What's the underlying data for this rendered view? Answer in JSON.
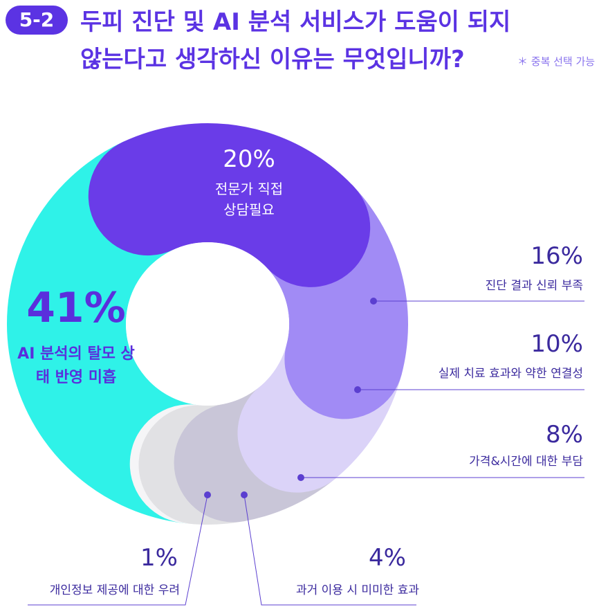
{
  "badge": "5-2",
  "title": [
    "두피 진단 및 AI 분석 서비스가 도움이 되지",
    "않는다고 생각하신 이유는 무엇입니까?"
  ],
  "note": "＊ 중복 선택 가능",
  "chart_data": {
    "type": "donut",
    "categories": [
      "AI 분석의 탈모 상태 반영 미흡",
      "전문가 직접 상담필요",
      "진단 결과 신뢰 부족",
      "실제 치료 효과와 약한 연결성",
      "가격&시간에 대한 부담",
      "과거 이용 시 미미한 효과",
      "개인정보 제공에 대한 우려"
    ],
    "values": [
      41,
      20,
      16,
      10,
      8,
      4,
      1
    ],
    "value_labels": [
      "41%",
      "20%",
      "16%",
      "10%",
      "8%",
      "4%",
      "1%"
    ],
    "colors": [
      "#2ff2e8",
      "#6a3ce8",
      "#a18bf5",
      "#dbd3f8",
      "#c9c6d8",
      "#e1e1e4",
      "#f5f5f7"
    ]
  }
}
